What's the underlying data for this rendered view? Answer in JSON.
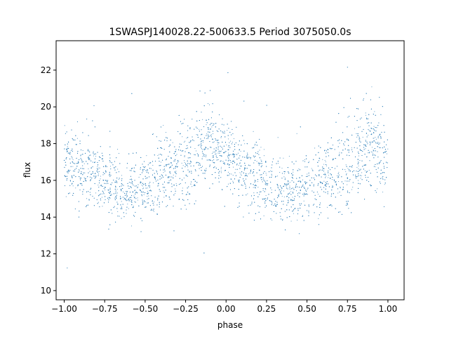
{
  "chart_data": {
    "type": "scatter",
    "title": "1SWASPJ140028.22-500633.5 Period 3075050.0s",
    "xlabel": "phase",
    "ylabel": "flux",
    "xlim": [
      -1.05,
      1.1
    ],
    "ylim": [
      9.5,
      23.6
    ],
    "xticks": [
      -1.0,
      -0.75,
      -0.5,
      -0.25,
      0.0,
      0.25,
      0.5,
      0.75,
      1.0
    ],
    "xtick_labels": [
      "−1.00",
      "−0.75",
      "−0.50",
      "−0.25",
      "0.00",
      "0.25",
      "0.50",
      "0.75",
      "1.00"
    ],
    "yticks": [
      10,
      12,
      14,
      16,
      18,
      20,
      22
    ],
    "ytick_labels": [
      "10",
      "12",
      "14",
      "16",
      "18",
      "20",
      "22"
    ],
    "grid": false,
    "legend": "none",
    "marker_color": "#1f77b4",
    "phase_profile": {
      "phase": [
        -1.0,
        -0.9,
        -0.8,
        -0.7,
        -0.6,
        -0.5,
        -0.4,
        -0.3,
        -0.2,
        -0.1,
        0.0,
        0.1,
        0.2,
        0.3,
        0.4,
        0.5,
        0.6,
        0.7,
        0.8,
        0.9,
        1.0
      ],
      "median_flux": [
        17.2,
        16.6,
        16.1,
        15.7,
        15.5,
        15.7,
        16.2,
        16.6,
        17.2,
        18.1,
        17.2,
        16.6,
        16.1,
        15.6,
        15.5,
        15.7,
        16.2,
        16.6,
        17.2,
        18.1,
        17.2
      ],
      "scatter": [
        1.0,
        1.0,
        1.0,
        0.9,
        0.8,
        0.9,
        1.0,
        1.1,
        1.1,
        1.2,
        1.0,
        1.0,
        1.0,
        0.9,
        0.8,
        0.9,
        1.0,
        1.1,
        1.1,
        1.2,
        1.0
      ]
    }
  }
}
